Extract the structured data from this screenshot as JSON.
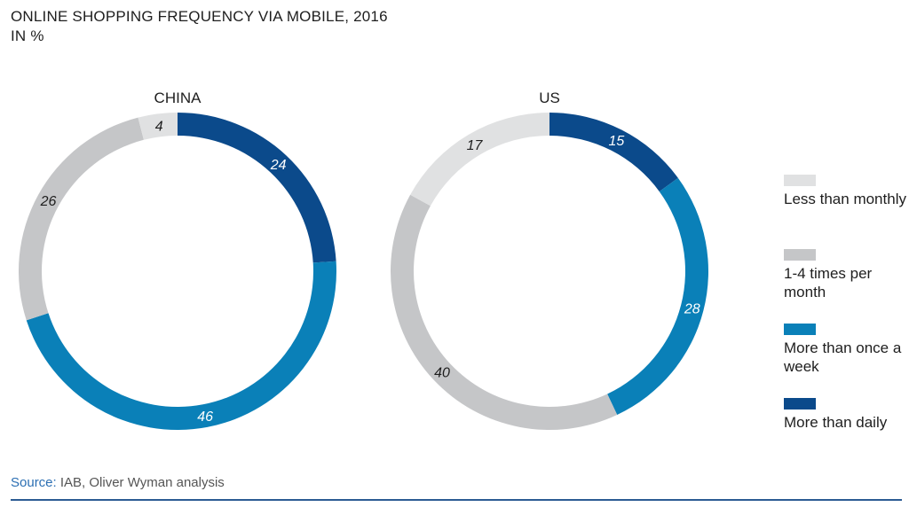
{
  "header": {
    "title_line1": "ONLINE SHOPPING FREQUENCY VIA MOBILE, 2016",
    "title_line2": "IN %"
  },
  "footer": {
    "source_label": "Source:",
    "source_text": "IAB, Oliver Wyman analysis"
  },
  "chart_data": [
    {
      "type": "pie",
      "variant": "donut",
      "title": "CHINA",
      "categories": [
        "More than daily",
        "More than once a week",
        "1-4 times per month",
        "Less than monthly"
      ],
      "values": [
        24,
        46,
        26,
        4
      ],
      "colors": [
        "#0b4a8b",
        "#0a80b8",
        "#c5c6c8",
        "#e0e1e2"
      ]
    },
    {
      "type": "pie",
      "variant": "donut",
      "title": "US",
      "categories": [
        "More than daily",
        "More than once a week",
        "1-4 times per month",
        "Less than monthly"
      ],
      "values": [
        15,
        28,
        40,
        17
      ],
      "colors": [
        "#0b4a8b",
        "#0a80b8",
        "#c5c6c8",
        "#e0e1e2"
      ]
    }
  ],
  "legend": {
    "placement": "right",
    "items": [
      {
        "label": "Less than monthly",
        "color": "#e0e1e2"
      },
      {
        "label": "1-4 times per month",
        "color": "#c5c6c8"
      },
      {
        "label": "More than once a week",
        "color": "#0a80b8"
      },
      {
        "label": "More than daily",
        "color": "#0b4a8b"
      }
    ]
  }
}
